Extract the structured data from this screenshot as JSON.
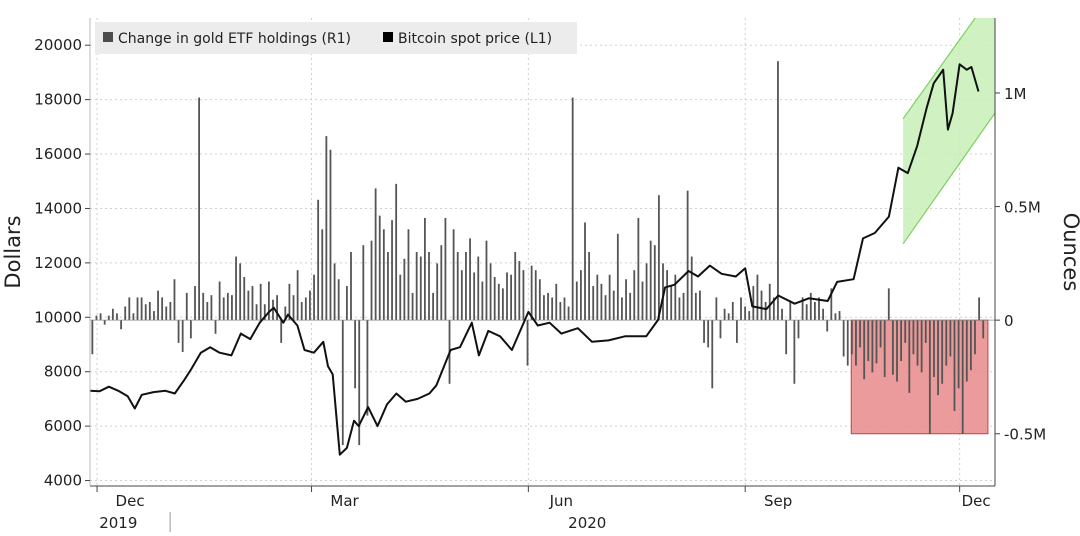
{
  "chart_data": {
    "type": "line",
    "title": "",
    "ylabel_left": "Dollars",
    "ylabel_right": "Ounces",
    "left_axis": {
      "ylim": [
        3800,
        21000
      ],
      "ticks": [
        4000,
        6000,
        8000,
        10000,
        12000,
        14000,
        16000,
        18000,
        20000
      ]
    },
    "right_axis": {
      "ylim": [
        -0.73,
        1.33
      ],
      "ticks": [
        -0.5,
        0,
        0.5,
        1.0
      ],
      "tick_labels": [
        "-0.5M",
        "0",
        "0.5M",
        "1M"
      ]
    },
    "x_axis": {
      "month_labels": [
        "Dec",
        "Mar",
        "Jun",
        "Sep",
        "Dec"
      ],
      "year_labels": [
        "2019",
        "2020"
      ]
    },
    "legend": {
      "placement": "top-left",
      "items": [
        {
          "label": "Change in gold ETF holdings (R1)",
          "color": "#4d4d4d"
        },
        {
          "label": "Bitcoin spot price (L1)",
          "color": "#000000"
        }
      ]
    },
    "grid": true,
    "colors": {
      "bitcoin_line": "#111111",
      "etf_bars": "#555555",
      "green_channel_fill": "#c8f0b8",
      "green_channel_stroke": "#7ccf5e",
      "red_box_fill": "#e88a8a",
      "red_box_stroke": "#c24545"
    },
    "series": [
      {
        "name": "Bitcoin spot price (L1)",
        "axis": "left",
        "type": "line",
        "points": [
          [
            "2019-11-28",
            7300
          ],
          [
            "2019-12-02",
            7280
          ],
          [
            "2019-12-06",
            7450
          ],
          [
            "2019-12-10",
            7300
          ],
          [
            "2019-12-14",
            7100
          ],
          [
            "2019-12-17",
            6650
          ],
          [
            "2019-12-20",
            7150
          ],
          [
            "2019-12-25",
            7250
          ],
          [
            "2019-12-30",
            7300
          ],
          [
            "2020-01-03",
            7200
          ],
          [
            "2020-01-07",
            7700
          ],
          [
            "2020-01-10",
            8100
          ],
          [
            "2020-01-14",
            8700
          ],
          [
            "2020-01-18",
            8900
          ],
          [
            "2020-01-22",
            8700
          ],
          [
            "2020-01-27",
            8600
          ],
          [
            "2020-01-31",
            9400
          ],
          [
            "2020-02-04",
            9200
          ],
          [
            "2020-02-08",
            9800
          ],
          [
            "2020-02-12",
            10200
          ],
          [
            "2020-02-14",
            10350
          ],
          [
            "2020-02-18",
            9800
          ],
          [
            "2020-02-20",
            10100
          ],
          [
            "2020-02-24",
            9700
          ],
          [
            "2020-02-27",
            8800
          ],
          [
            "2020-03-02",
            8700
          ],
          [
            "2020-03-06",
            9100
          ],
          [
            "2020-03-08",
            8200
          ],
          [
            "2020-03-10",
            7900
          ],
          [
            "2020-03-12",
            5900
          ],
          [
            "2020-03-13",
            4950
          ],
          [
            "2020-03-16",
            5200
          ],
          [
            "2020-03-19",
            6200
          ],
          [
            "2020-03-21",
            6000
          ],
          [
            "2020-03-25",
            6700
          ],
          [
            "2020-03-29",
            6000
          ],
          [
            "2020-04-02",
            6800
          ],
          [
            "2020-04-06",
            7200
          ],
          [
            "2020-04-10",
            6900
          ],
          [
            "2020-04-15",
            7000
          ],
          [
            "2020-04-20",
            7200
          ],
          [
            "2020-04-23",
            7500
          ],
          [
            "2020-04-29",
            8800
          ],
          [
            "2020-05-03",
            8900
          ],
          [
            "2020-05-08",
            9800
          ],
          [
            "2020-05-11",
            8600
          ],
          [
            "2020-05-15",
            9500
          ],
          [
            "2020-05-20",
            9300
          ],
          [
            "2020-05-25",
            8800
          ],
          [
            "2020-06-01",
            10200
          ],
          [
            "2020-06-05",
            9700
          ],
          [
            "2020-06-10",
            9800
          ],
          [
            "2020-06-15",
            9400
          ],
          [
            "2020-06-22",
            9600
          ],
          [
            "2020-06-28",
            9100
          ],
          [
            "2020-07-05",
            9150
          ],
          [
            "2020-07-12",
            9300
          ],
          [
            "2020-07-21",
            9300
          ],
          [
            "2020-07-26",
            9900
          ],
          [
            "2020-07-29",
            11100
          ],
          [
            "2020-08-02",
            11200
          ],
          [
            "2020-08-08",
            11700
          ],
          [
            "2020-08-12",
            11500
          ],
          [
            "2020-08-17",
            11900
          ],
          [
            "2020-08-22",
            11600
          ],
          [
            "2020-08-28",
            11500
          ],
          [
            "2020-09-01",
            11800
          ],
          [
            "2020-09-04",
            10400
          ],
          [
            "2020-09-10",
            10300
          ],
          [
            "2020-09-15",
            10800
          ],
          [
            "2020-09-22",
            10500
          ],
          [
            "2020-09-28",
            10700
          ],
          [
            "2020-10-06",
            10600
          ],
          [
            "2020-10-10",
            11300
          ],
          [
            "2020-10-17",
            11400
          ],
          [
            "2020-10-21",
            12900
          ],
          [
            "2020-10-26",
            13100
          ],
          [
            "2020-11-01",
            13700
          ],
          [
            "2020-11-05",
            15500
          ],
          [
            "2020-11-09",
            15300
          ],
          [
            "2020-11-13",
            16300
          ],
          [
            "2020-11-17",
            17700
          ],
          [
            "2020-11-20",
            18600
          ],
          [
            "2020-11-24",
            19100
          ],
          [
            "2020-11-26",
            16900
          ],
          [
            "2020-11-28",
            17500
          ],
          [
            "2020-12-01",
            19300
          ],
          [
            "2020-12-04",
            19100
          ],
          [
            "2020-12-06",
            19200
          ],
          [
            "2020-12-09",
            18300
          ]
        ]
      },
      {
        "name": "Change in gold ETF holdings (R1)",
        "axis": "right",
        "type": "bar",
        "values": [
          -0.15,
          0.02,
          0.03,
          -0.02,
          0.02,
          0.05,
          0.03,
          -0.04,
          0.06,
          0.1,
          0.03,
          0.1,
          0.1,
          0.07,
          0.08,
          0.04,
          0.13,
          0.1,
          0.06,
          0.08,
          0.18,
          -0.1,
          -0.14,
          0.12,
          -0.08,
          0.15,
          0.98,
          0.12,
          0.08,
          0.11,
          -0.06,
          0.17,
          0.1,
          0.12,
          0.11,
          0.28,
          0.25,
          0.19,
          0.13,
          0.15,
          0.07,
          0.16,
          0.07,
          0.17,
          0.09,
          0.11,
          -0.1,
          0.06,
          0.16,
          0.11,
          0.22,
          0.08,
          0.1,
          0.13,
          0.2,
          0.53,
          0.4,
          0.81,
          0.75,
          0.25,
          0.18,
          -0.55,
          0.15,
          0.3,
          -0.3,
          -0.55,
          0.33,
          -0.42,
          0.35,
          0.58,
          0.46,
          0.4,
          0.3,
          0.44,
          0.6,
          0.2,
          0.27,
          0.4,
          0.12,
          0.3,
          0.28,
          0.45,
          0.3,
          0.12,
          0.25,
          0.33,
          0.45,
          -0.28,
          0.4,
          0.3,
          0.22,
          0.3,
          0.36,
          0.21,
          0.28,
          0.17,
          0.35,
          0.25,
          0.19,
          0.16,
          0.14,
          0.21,
          0.2,
          0.3,
          0.26,
          0.22,
          -0.2,
          0.24,
          0.22,
          0.18,
          0.11,
          0.12,
          0.1,
          0.16,
          0.08,
          0.1,
          0.06,
          0.98,
          0.17,
          0.22,
          0.43,
          0.3,
          0.15,
          0.2,
          0.16,
          0.11,
          0.2,
          0.13,
          0.38,
          0.1,
          0.18,
          0.12,
          0.22,
          0.45,
          0.17,
          0.25,
          0.35,
          0.33,
          0.55,
          0.25,
          0.22,
          0.15,
          0.2,
          0.1,
          0.12,
          0.57,
          0.28,
          0.12,
          0.13,
          -0.1,
          -0.12,
          -0.3,
          0.1,
          -0.08,
          0.05,
          0.03,
          0.08,
          -0.1,
          0.1,
          0.06,
          0.04,
          0.15,
          0.2,
          0.13,
          0.08,
          0.16,
          0.1,
          1.14,
          0.05,
          -0.15,
          0.08,
          -0.28,
          -0.08,
          0.1,
          0.07,
          0.12,
          0.08,
          0.1,
          0.05,
          -0.05,
          0.14,
          0.03,
          0.04,
          -0.16,
          -0.2,
          -0.15,
          -0.2,
          -0.12,
          -0.26,
          -0.18,
          -0.23,
          -0.19,
          -0.12,
          -0.25,
          0.14,
          -0.24,
          -0.27,
          -0.18,
          -0.1,
          -0.32,
          -0.15,
          -0.2,
          -0.23,
          -0.1,
          -0.5,
          -0.25,
          -0.33,
          -0.28,
          -0.2,
          -0.16,
          -0.4,
          -0.3,
          -0.5,
          -0.27,
          -0.22,
          -0.15,
          0.1,
          -0.08
        ]
      }
    ],
    "annotations": [
      {
        "type": "channel",
        "color": "green",
        "x_range": [
          "2020-11-07",
          "2020-12-20"
        ],
        "lower": [
          12700,
          18000
        ],
        "upper": [
          17300,
          22500
        ]
      },
      {
        "type": "box",
        "color": "red",
        "x_range": [
          "2020-10-16",
          "2020-12-13"
        ],
        "y_range": [
          -0.5,
          0
        ]
      }
    ]
  }
}
